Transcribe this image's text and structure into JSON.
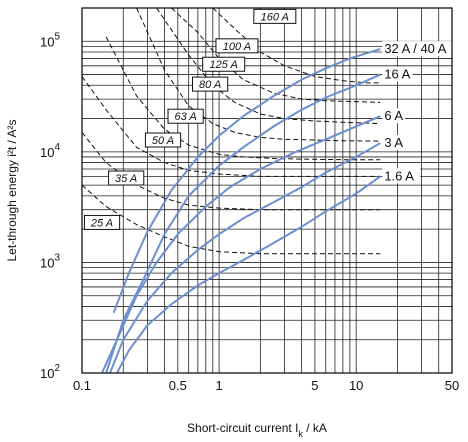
{
  "chart_data": {
    "type": "line",
    "title": "",
    "xlabel": "Short-circuit current I",
    "xlabel_sub": "k",
    "xlabel_unit": " / kA",
    "ylabel": "Let-through energy i²t / A²s",
    "x_scale": "log",
    "y_scale": "log",
    "xlim": [
      0.1,
      50
    ],
    "ylim": [
      100,
      200000
    ],
    "x_ticks": [
      {
        "value": 0.1,
        "label": "0.1"
      },
      {
        "value": 0.5,
        "label": "0.5"
      },
      {
        "value": 1,
        "label": "1"
      },
      {
        "value": 5,
        "label": "5"
      },
      {
        "value": 10,
        "label": "10"
      },
      {
        "value": 50,
        "label": "50"
      }
    ],
    "y_ticks": [
      {
        "value": 100,
        "label": "10",
        "exp": "2"
      },
      {
        "value": 1000,
        "label": "10",
        "exp": "3"
      },
      {
        "value": 10000,
        "label": "10",
        "exp": "4"
      },
      {
        "value": 100000,
        "label": "10",
        "exp": "5"
      }
    ],
    "grid": true,
    "series": [
      {
        "name": "32 A / 40 A",
        "color": "#6b8fcf",
        "x": [
          0.17,
          0.22,
          0.3,
          0.45,
          0.7,
          1.0,
          1.5,
          2.5,
          4,
          6,
          9,
          15
        ],
        "y": [
          350,
          800,
          1900,
          4500,
          9000,
          14000,
          21000,
          32000,
          45000,
          57000,
          70000,
          85000
        ]
      },
      {
        "name": "16 A",
        "color": "#6b8fcf",
        "x": [
          0.15,
          0.2,
          0.28,
          0.4,
          0.6,
          1.0,
          1.5,
          2.5,
          4,
          6,
          10,
          15
        ],
        "y": [
          100,
          300,
          700,
          1800,
          4000,
          7500,
          11000,
          17000,
          24000,
          31000,
          40000,
          50000
        ]
      },
      {
        "name": "6 A",
        "color": "#6b8fcf",
        "x": [
          0.14,
          0.18,
          0.25,
          0.35,
          0.5,
          0.8,
          1.2,
          2,
          3.5,
          6,
          10,
          15
        ],
        "y": [
          100,
          200,
          500,
          1000,
          1800,
          3200,
          4800,
          7000,
          9800,
          13000,
          17000,
          21000
        ]
      },
      {
        "name": "3 A",
        "color": "#6b8fcf",
        "x": [
          0.16,
          0.2,
          0.3,
          0.45,
          0.7,
          1.0,
          1.5,
          2.5,
          4,
          6,
          10,
          15
        ],
        "y": [
          100,
          200,
          450,
          800,
          1300,
          1800,
          2500,
          3500,
          4800,
          6500,
          9000,
          12000
        ]
      },
      {
        "name": "1.6 A",
        "color": "#6b8fcf",
        "x": [
          0.18,
          0.22,
          0.3,
          0.45,
          0.7,
          1.0,
          1.5,
          2.5,
          4,
          6,
          10,
          15
        ],
        "y": [
          100,
          160,
          270,
          420,
          620,
          800,
          1050,
          1500,
          2100,
          2900,
          4200,
          6000
        ]
      }
    ],
    "fuse_curves": [
      {
        "name": "25 A",
        "x": [
          0.1,
          0.15,
          0.25,
          0.4,
          0.6,
          1.0,
          2,
          4,
          8,
          15
        ],
        "y": [
          5000,
          3200,
          2200,
          1700,
          1400,
          1250,
          1200,
          1200,
          1200,
          1200
        ]
      },
      {
        "name": "35 A",
        "x": [
          0.1,
          0.15,
          0.25,
          0.4,
          0.6,
          1.0,
          2,
          4,
          8,
          15
        ],
        "y": [
          15000,
          8000,
          5000,
          3800,
          3300,
          3100,
          3000,
          3000,
          3000,
          3000
        ]
      },
      {
        "name": "50 A",
        "x": [
          0.1,
          0.15,
          0.25,
          0.4,
          0.6,
          1.0,
          2,
          4,
          8,
          15
        ],
        "y": [
          48000,
          24000,
          11000,
          8000,
          6800,
          6300,
          6000,
          6000,
          6000,
          6000
        ]
      },
      {
        "name": "63 A",
        "x": [
          0.15,
          0.25,
          0.4,
          0.6,
          1.0,
          1.5,
          2.5,
          4,
          8,
          15
        ],
        "y": [
          110000,
          32000,
          16000,
          11500,
          9500,
          9000,
          8700,
          8600,
          8500,
          8500
        ]
      },
      {
        "name": "80 A",
        "x": [
          0.25,
          0.4,
          0.6,
          0.9,
          1.3,
          2,
          3,
          5,
          8,
          15
        ],
        "y": [
          200000,
          55000,
          26000,
          18000,
          15000,
          13500,
          13000,
          12800,
          12600,
          12500
        ]
      },
      {
        "name": "100 A",
        "x": [
          0.35,
          0.6,
          0.9,
          1.3,
          2,
          3,
          5,
          8,
          15
        ],
        "y": [
          200000,
          75000,
          40000,
          28000,
          22000,
          20000,
          19000,
          18500,
          18000
        ]
      },
      {
        "name": "125 A",
        "x": [
          0.45,
          0.7,
          1.0,
          1.5,
          2.5,
          4,
          6,
          10,
          15
        ],
        "y": [
          200000,
          120000,
          70000,
          45000,
          34000,
          30000,
          29000,
          28500,
          28000
        ]
      },
      {
        "name": "160 A",
        "x": [
          0.9,
          1.3,
          2,
          3,
          5,
          8,
          12,
          15
        ],
        "y": [
          200000,
          130000,
          80000,
          60000,
          48000,
          44000,
          42000,
          42000
        ]
      }
    ],
    "fuse_label_positions": [
      {
        "name": "25 A",
        "x": 0.14,
        "y": 2300
      },
      {
        "name": "35 A",
        "x": 0.21,
        "y": 5800
      },
      {
        "name": "50 A",
        "x": 0.39,
        "y": 12800
      },
      {
        "name": "63 A",
        "x": 0.57,
        "y": 21000
      },
      {
        "name": "80 A",
        "x": 0.86,
        "y": 41000
      },
      {
        "name": "125 A",
        "x": 1.08,
        "y": 62000
      },
      {
        "name": "100 A",
        "x": 1.35,
        "y": 91000
      },
      {
        "name": "160 A",
        "x": 2.55,
        "y": 168000
      }
    ]
  }
}
